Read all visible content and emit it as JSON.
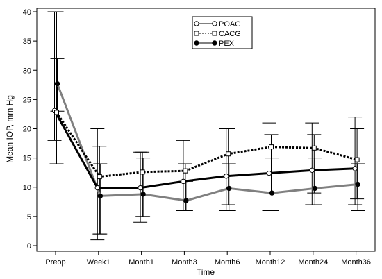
{
  "chart_data": {
    "type": "line",
    "xlabel": "Time",
    "ylabel": "Mean IOP, mm Hg",
    "ylim": [
      0,
      40
    ],
    "yticks": [
      0,
      5,
      10,
      15,
      20,
      25,
      30,
      35,
      40
    ],
    "categories": [
      "Preop",
      "Week1",
      "Month1",
      "Month3",
      "Month6",
      "Month12",
      "Month24",
      "Month36"
    ],
    "legend_position": "top-right",
    "grid": false,
    "series": [
      {
        "name": "POAG",
        "color": "#000000",
        "line_style": "solid",
        "marker": "open-circle",
        "values": [
          23.1,
          9.9,
          9.9,
          11.0,
          11.9,
          12.4,
          12.9,
          13.2
        ],
        "error_low": [
          18.0,
          1.0,
          4.0,
          6.0,
          6.0,
          6.0,
          7.0,
          7.0
        ],
        "error_high": [
          40.0,
          20.0,
          16.0,
          18.0,
          20.0,
          21.0,
          21.0,
          22.0
        ]
      },
      {
        "name": "CACG",
        "color": "#000000",
        "line_style": "dotted",
        "marker": "open-square",
        "values": [
          22.8,
          11.8,
          12.6,
          12.8,
          15.7,
          16.9,
          16.7,
          14.7
        ],
        "error_low": [
          14.0,
          2.0,
          5.0,
          6.0,
          7.0,
          9.0,
          9.0,
          8.0
        ],
        "error_high": [
          40.0,
          17.0,
          16.0,
          14.0,
          20.0,
          19.0,
          19.0,
          20.0
        ]
      },
      {
        "name": "PEX",
        "color": "#808080",
        "line_style": "solid",
        "marker": "filled-circle",
        "values": [
          27.7,
          8.5,
          8.8,
          7.7,
          9.8,
          9.0,
          9.8,
          10.5
        ],
        "error_low": [
          23.0,
          2.0,
          5.0,
          6.0,
          6.0,
          6.0,
          7.0,
          6.0
        ],
        "error_high": [
          32.0,
          14.0,
          15.0,
          11.0,
          14.0,
          15.0,
          15.0,
          14.0
        ]
      }
    ]
  }
}
